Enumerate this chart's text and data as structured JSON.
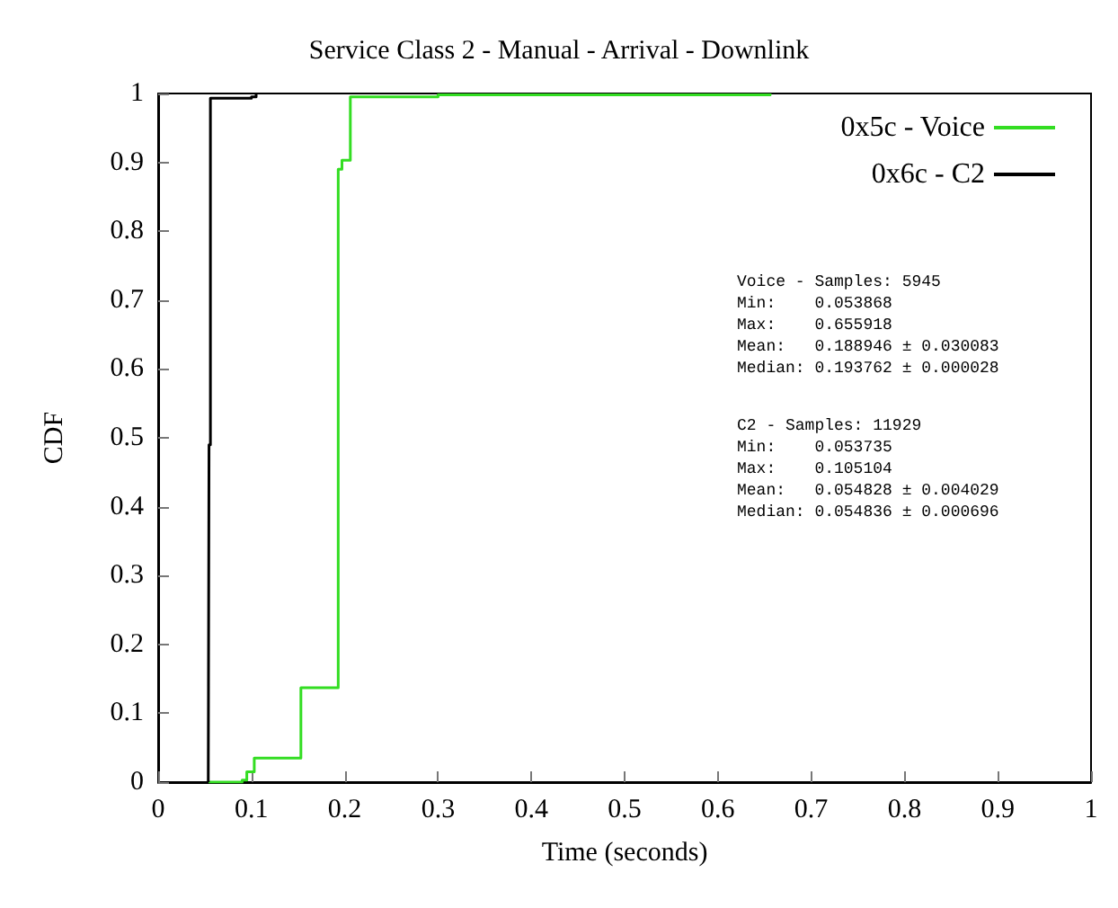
{
  "chart_data": {
    "type": "step",
    "title": "Service Class 2 - Manual - Arrival - Downlink",
    "xlabel": "Time (seconds)",
    "ylabel": "CDF",
    "series": [
      {
        "name": "0x5c - Voice",
        "color": "#33dd22",
        "x": [
          0.054,
          0.09,
          0.095,
          0.103,
          0.153,
          0.193,
          0.197,
          0.206,
          0.3,
          0.656
        ],
        "values": [
          0,
          0.003,
          0.015,
          0.035,
          0.137,
          0.89,
          0.903,
          0.995,
          0.998,
          1
        ]
      },
      {
        "name": "0x6c - C2",
        "color": "#000000",
        "x": [
          0.0537,
          0.0545,
          0.056,
          0.1,
          0.105
        ],
        "values": [
          0,
          0.49,
          0.993,
          0.995,
          1
        ]
      }
    ],
    "xlim": [
      0,
      1
    ],
    "xticks": [
      0,
      0.1,
      0.2,
      0.3,
      0.4,
      0.5,
      0.6,
      0.7,
      0.8,
      0.9,
      1
    ],
    "ylim": [
      0,
      1
    ],
    "yticks": [
      0,
      0.1,
      0.2,
      0.3,
      0.4,
      0.5,
      0.6,
      0.7,
      0.8,
      0.9,
      1
    ],
    "grid": false,
    "legend": "top right",
    "marker": "none",
    "annotations": [
      "Voice - Samples: 5945\nMin:    0.053868\nMax:    0.655918\nMean:   0.188946 ± 0.030083\nMedian: 0.193762 ± 0.000028",
      "C2 - Samples: 11929\nMin:    0.053735\nMax:    0.105104\nMean:   0.054828 ± 0.004029\nMedian: 0.054836 ± 0.000696"
    ]
  }
}
